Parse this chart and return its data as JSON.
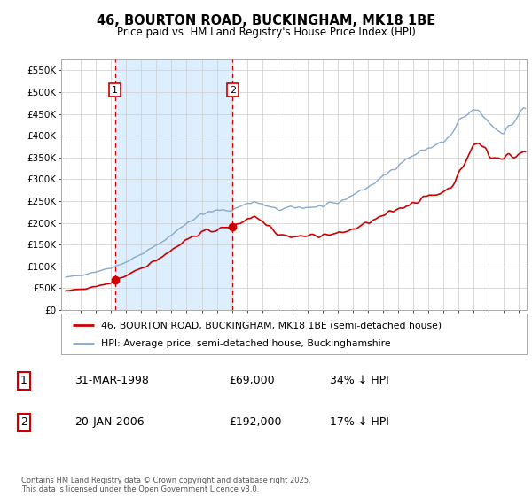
{
  "title": "46, BOURTON ROAD, BUCKINGHAM, MK18 1BE",
  "subtitle": "Price paid vs. HM Land Registry's House Price Index (HPI)",
  "sale1_date": "31-MAR-1998",
  "sale1_price": 69000,
  "sale1_label": "34% ↓ HPI",
  "sale2_date": "20-JAN-2006",
  "sale2_price": 192000,
  "sale2_label": "17% ↓ HPI",
  "legend_line1": "46, BOURTON ROAD, BUCKINGHAM, MK18 1BE (semi-detached house)",
  "legend_line2": "HPI: Average price, semi-detached house, Buckinghamshire",
  "footer": "Contains HM Land Registry data © Crown copyright and database right 2025.\nThis data is licensed under the Open Government Licence v3.0.",
  "price_line_color": "#cc0000",
  "hpi_line_color": "#88aacc",
  "shade_color": "#ddeeff",
  "sale_marker_color": "#cc0000",
  "vline_color": "#cc0000",
  "ylim": [
    0,
    575000
  ],
  "yticks": [
    0,
    50000,
    100000,
    150000,
    200000,
    250000,
    300000,
    350000,
    400000,
    450000,
    500000,
    550000
  ],
  "ytick_labels": [
    "£0",
    "£50K",
    "£100K",
    "£150K",
    "£200K",
    "£250K",
    "£300K",
    "£350K",
    "£400K",
    "£450K",
    "£500K",
    "£550K"
  ],
  "sale1_year": 1998.25,
  "sale2_year": 2006.05,
  "xtick_years": [
    1995,
    1996,
    1997,
    1998,
    1999,
    2000,
    2001,
    2002,
    2003,
    2004,
    2005,
    2006,
    2007,
    2008,
    2009,
    2010,
    2011,
    2012,
    2013,
    2014,
    2015,
    2016,
    2017,
    2018,
    2019,
    2020,
    2021,
    2022,
    2023,
    2024,
    2025
  ],
  "background_color": "#ffffff",
  "grid_color": "#cccccc"
}
